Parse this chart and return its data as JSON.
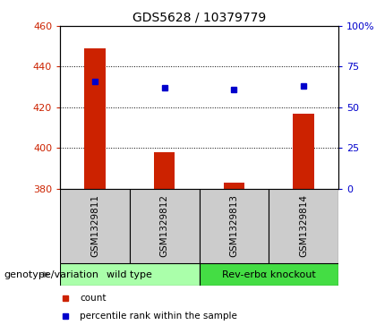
{
  "title": "GDS5628 / 10379779",
  "samples": [
    "GSM1329811",
    "GSM1329812",
    "GSM1329813",
    "GSM1329814"
  ],
  "counts": [
    449,
    398,
    383,
    417
  ],
  "percentiles": [
    66,
    62,
    61,
    63
  ],
  "left_ylim": [
    380,
    460
  ],
  "left_yticks": [
    380,
    400,
    420,
    440,
    460
  ],
  "right_ylim": [
    0,
    100
  ],
  "right_yticks": [
    0,
    25,
    50,
    75,
    100
  ],
  "bar_color": "#cc2200",
  "dot_color": "#0000cc",
  "groups": [
    {
      "label": "wild type",
      "sample_indices": [
        0,
        1
      ],
      "color": "#aaffaa"
    },
    {
      "label": "Rev-erbα knockout",
      "sample_indices": [
        2,
        3
      ],
      "color": "#44dd44"
    }
  ],
  "group_row_label": "genotype/variation",
  "legend_items": [
    {
      "label": "count",
      "color": "#cc2200"
    },
    {
      "label": "percentile rank within the sample",
      "color": "#0000cc"
    }
  ],
  "sample_box_color": "#cccccc",
  "title_fontsize": 10,
  "tick_fontsize": 8,
  "label_fontsize": 7.5,
  "group_label_fontsize": 8
}
